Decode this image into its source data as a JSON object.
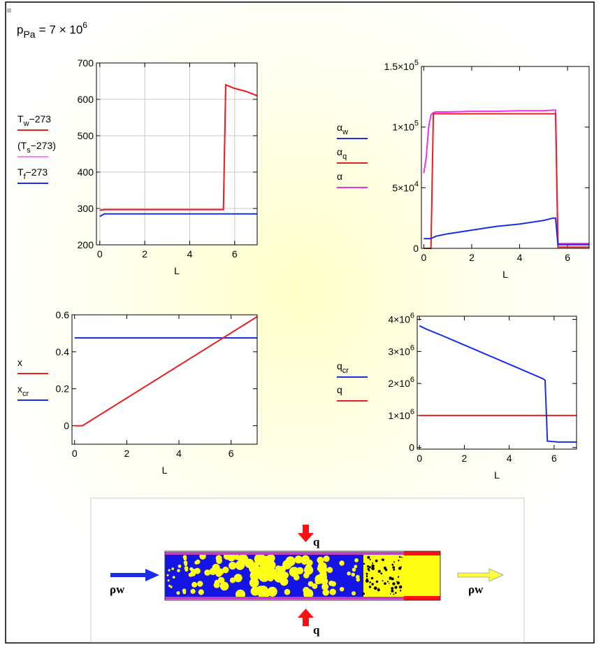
{
  "header": {
    "symbol": "p",
    "subscript": "Pa",
    "operator": "=",
    "mantissa": "7 × 10",
    "exponent": "6"
  },
  "chart_data": [
    {
      "type": "line",
      "x_label": "L",
      "grid": true,
      "x": [
        0,
        0.2,
        0.4,
        1,
        2,
        3,
        4,
        5,
        5.5,
        5.6,
        6,
        6.5,
        7
      ],
      "series": [
        {
          "name": [
            "T",
            "w",
            "−273"
          ],
          "color": "#e8201e",
          "values": [
            295,
            297,
            297,
            297,
            297,
            297,
            297,
            297,
            297,
            640,
            630,
            622,
            610
          ]
        },
        {
          "name": [
            "(T",
            "s",
            "−273)"
          ],
          "color": "#ff80ff",
          "values": [
            295,
            297,
            297,
            297,
            297,
            297,
            297,
            297,
            297,
            640,
            630,
            622,
            610
          ]
        },
        {
          "name": [
            "T",
            "f",
            "−273"
          ],
          "color": "#1a2ee8",
          "values": [
            278,
            285,
            285,
            285,
            285,
            285,
            285,
            285,
            285,
            285,
            285,
            285,
            285
          ]
        }
      ],
      "xlim": [
        -0.15,
        7
      ],
      "ylim": [
        200,
        700
      ],
      "xticks": [
        0,
        2,
        4,
        6
      ],
      "yticks": [
        200,
        300,
        400,
        500,
        600,
        700
      ]
    },
    {
      "type": "line",
      "x_label": "L",
      "grid": false,
      "x": [
        0,
        0.1,
        0.2,
        0.3,
        0.4,
        0.5,
        1,
        2,
        3,
        4,
        5,
        5.4,
        5.5,
        5.6,
        6,
        6.9
      ],
      "series": [
        {
          "name": [
            "α",
            "w"
          ],
          "color": "#1a2ee8",
          "values": [
            8000,
            8000,
            8000,
            8000,
            9000,
            10000,
            12000,
            15000,
            18000,
            20000,
            23000,
            25000,
            25000,
            3000,
            3000,
            3000
          ]
        },
        {
          "name": [
            "α",
            "q"
          ],
          "color": "#e8201e",
          "values": [
            0,
            0,
            0,
            0,
            111000,
            111000,
            111000,
            111000,
            111000,
            111000,
            111000,
            111000,
            111000,
            1000,
            1000,
            1000
          ]
        },
        {
          "name": [
            "α"
          ],
          "color": "#f030f0",
          "values": [
            62000,
            75000,
            100000,
            110000,
            112000,
            112500,
            112500,
            113000,
            113000,
            113500,
            113500,
            114000,
            114000,
            4000,
            4000,
            4000
          ]
        }
      ],
      "xlim": [
        -0.1,
        6.9
      ],
      "ylim": [
        0,
        150000
      ],
      "xticks": [
        0,
        2,
        4,
        6
      ],
      "yticks": [
        0,
        {
          "value": 50000,
          "label": [
            "5×10",
            "4"
          ]
        },
        {
          "value": 100000,
          "label": [
            "1×10",
            "5"
          ]
        },
        {
          "value": 150000,
          "label": [
            "1.5×10",
            "5"
          ]
        }
      ]
    },
    {
      "type": "line",
      "x_label": "L",
      "grid": false,
      "x": [
        0,
        0.3,
        7
      ],
      "series": [
        {
          "name": [
            "x"
          ],
          "color": "#e8201e",
          "values": [
            0,
            0,
            0.59
          ]
        },
        {
          "name": [
            "x",
            "cr"
          ],
          "color": "#1a2ee8",
          "values": [
            0.475,
            0.475,
            0.475
          ]
        }
      ],
      "xlim": [
        -0.1,
        7
      ],
      "ylim": [
        -0.1,
        0.6
      ],
      "xticks": [
        0,
        2,
        4,
        6
      ],
      "yticks": [
        0,
        0.2,
        0.4,
        0.6
      ]
    },
    {
      "type": "line",
      "x_label": "L",
      "grid": false,
      "x": [
        0,
        0.3,
        1,
        2,
        3,
        4,
        5,
        5.5,
        5.6,
        5.7,
        6.2,
        7
      ],
      "series": [
        {
          "name": [
            "q",
            "cr"
          ],
          "color": "#1a2ee8",
          "values": [
            3800000,
            3700000,
            3500000,
            3200000,
            2900000,
            2600000,
            2300000,
            2150000,
            2100000,
            200000,
            170000,
            170000
          ]
        },
        {
          "name": [
            "q"
          ],
          "color": "#e8201e",
          "values": [
            1000000,
            1000000,
            1000000,
            1000000,
            1000000,
            1000000,
            1000000,
            1000000,
            1000000,
            1000000,
            1000000,
            1000000
          ]
        }
      ],
      "xlim": [
        -0.1,
        7
      ],
      "ylim": [
        -50000,
        4100000
      ],
      "xticks": [
        0,
        2,
        4,
        6
      ],
      "yticks": [
        0,
        {
          "value": 1000000,
          "label": [
            "1×10",
            "6"
          ]
        },
        {
          "value": 2000000,
          "label": [
            "2×10",
            "6"
          ]
        },
        {
          "value": 3000000,
          "label": [
            "3×10",
            "6"
          ]
        },
        {
          "value": 4000000,
          "label": [
            "4×10",
            "6"
          ]
        }
      ]
    }
  ],
  "diagram": {
    "heat_flux_top": "q",
    "heat_flux_bottom": "q",
    "inlet": "ρw",
    "outlet": "ρw"
  }
}
